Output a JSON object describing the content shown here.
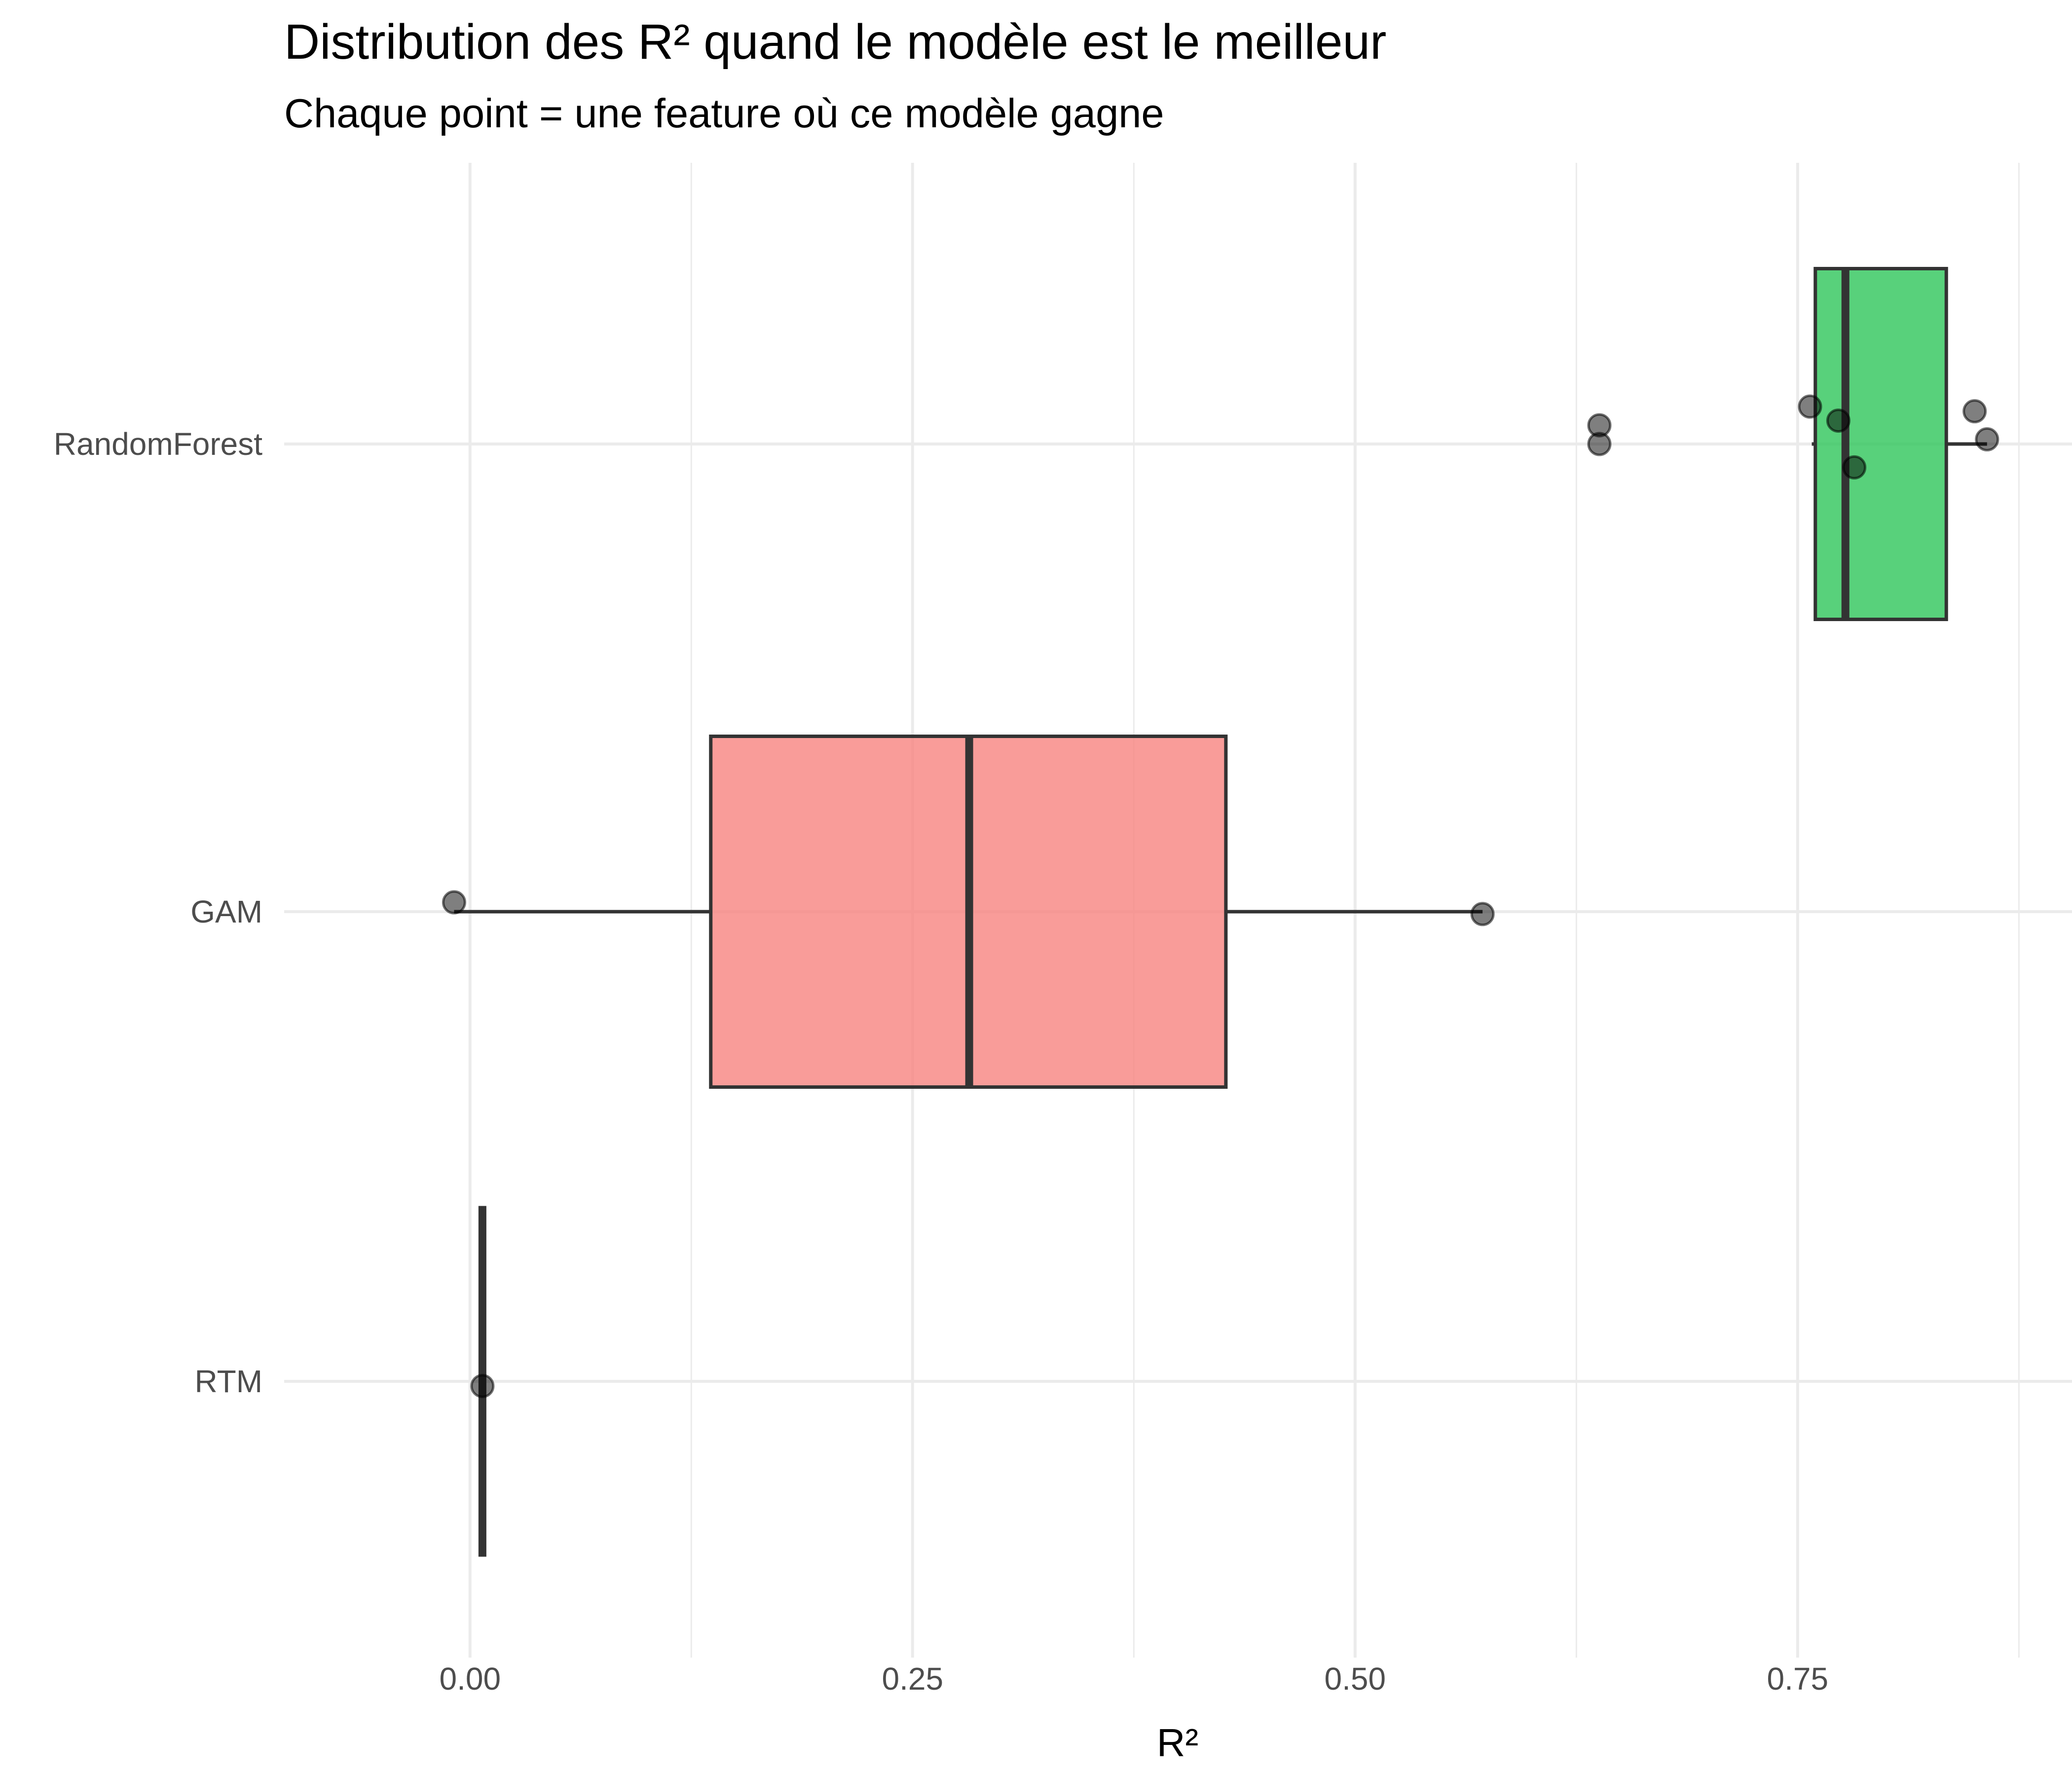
{
  "chart_data": {
    "type": "boxplot",
    "title": "Distribution des R² quand le modèle est le meilleur",
    "subtitle": "Chaque point = une feature où ce modèle gagne",
    "xlabel": "R²",
    "ylabel": "",
    "xlim": [
      -0.105,
      0.905
    ],
    "x_ticks": [
      0.0,
      0.25,
      0.5,
      0.75
    ],
    "x_tick_labels": [
      "0.00",
      "0.25",
      "0.50",
      "0.75"
    ],
    "x_minor_grid": [
      0.125,
      0.375,
      0.625,
      0.875
    ],
    "grid": true,
    "legend": "none",
    "categories": [
      "RandomForest",
      "GAM",
      "RTM"
    ],
    "series": [
      {
        "category": "RandomForest",
        "color": "#2ec55a",
        "box": {
          "whisker_low": 0.758,
          "q1": 0.76,
          "median": 0.777,
          "q3": 0.834,
          "whisker_high": 0.857
        },
        "points": [
          {
            "x": 0.638,
            "jitter": 0.04
          },
          {
            "x": 0.638,
            "jitter": 0.0
          },
          {
            "x": 0.757,
            "jitter": 0.08
          },
          {
            "x": 0.773,
            "jitter": 0.05
          },
          {
            "x": 0.782,
            "jitter": -0.05
          },
          {
            "x": 0.85,
            "jitter": 0.07
          },
          {
            "x": 0.857,
            "jitter": 0.01
          }
        ]
      },
      {
        "category": "GAM",
        "color": "#f8837f",
        "box": {
          "whisker_low": -0.009,
          "q1": 0.136,
          "median": 0.282,
          "q3": 0.427,
          "whisker_high": 0.572
        },
        "points": [
          {
            "x": -0.009,
            "jitter": 0.02
          },
          {
            "x": 0.572,
            "jitter": -0.005
          }
        ]
      },
      {
        "category": "RTM",
        "color": "#5b8ff2",
        "box": {
          "whisker_low": 0.007,
          "q1": 0.007,
          "median": 0.007,
          "q3": 0.007,
          "whisker_high": 0.007
        },
        "points": [
          {
            "x": 0.007,
            "jitter": -0.01
          }
        ]
      }
    ]
  }
}
